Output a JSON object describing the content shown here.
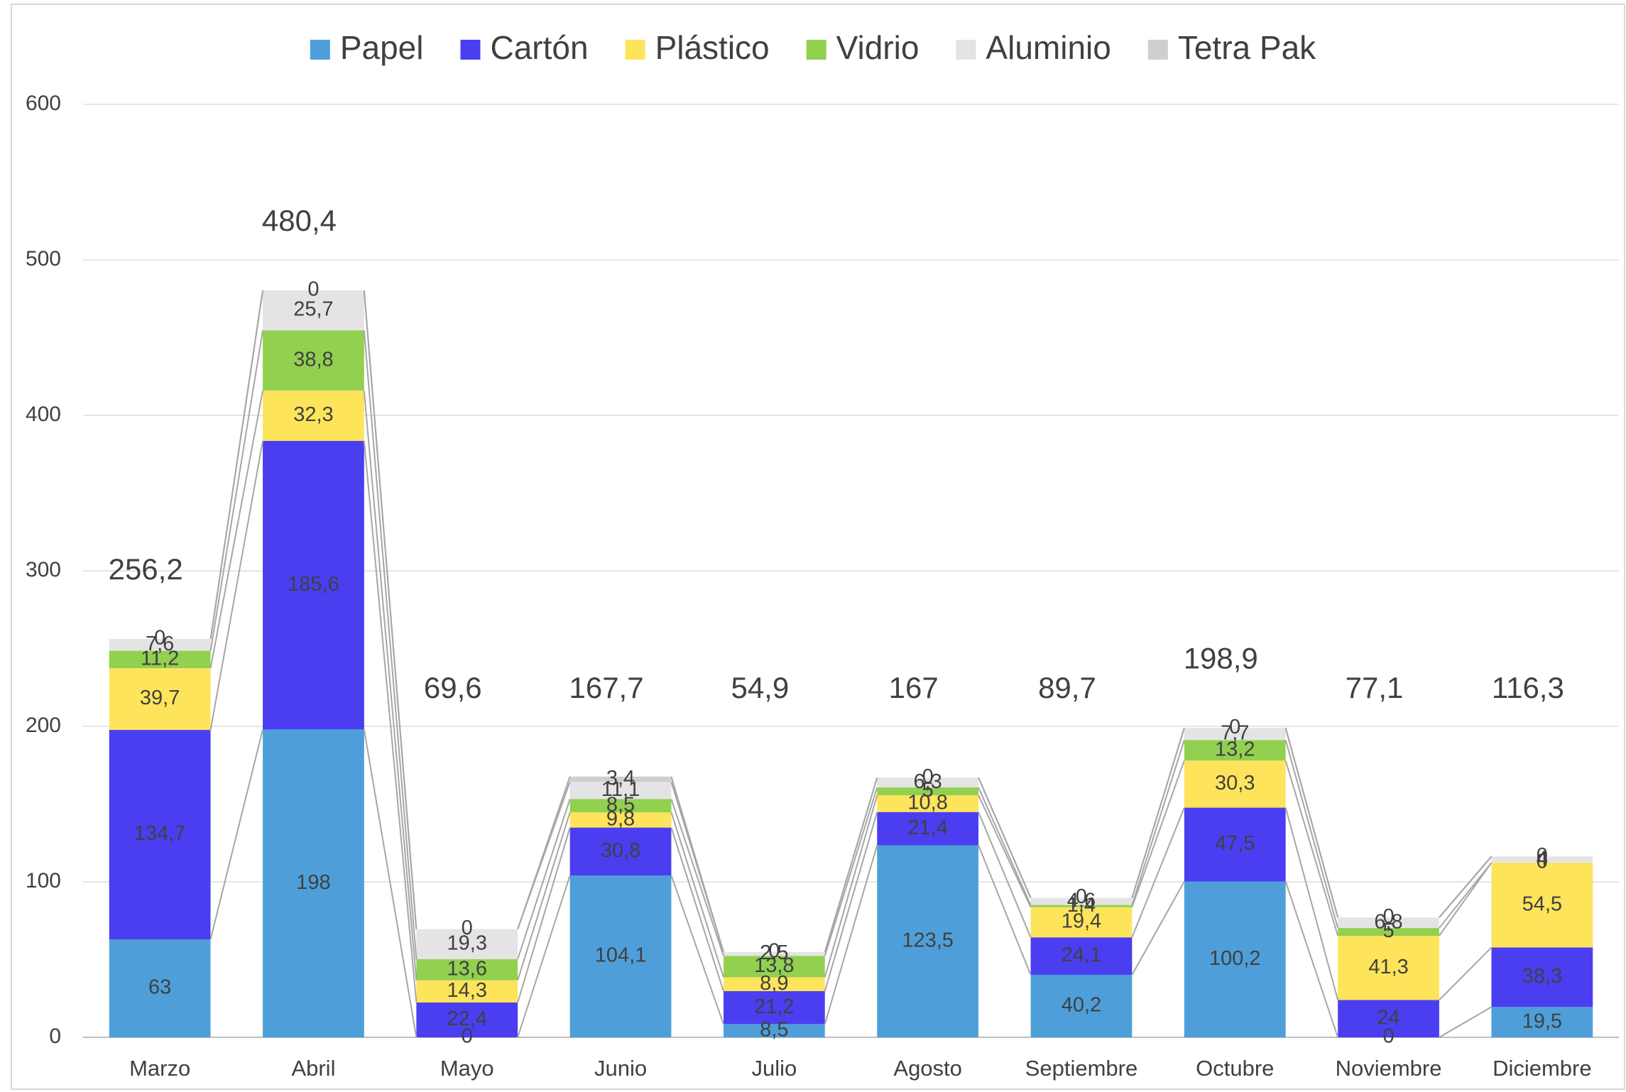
{
  "chart_data": {
    "type": "stacked_bar",
    "categories": [
      "Marzo",
      "Abril",
      "Mayo",
      "Junio",
      "Julio",
      "Agosto",
      "Septiembre",
      "Octubre",
      "Noviembre",
      "Diciembre"
    ],
    "series": [
      {
        "name": "Papel",
        "color": "#4e9fd9",
        "label_color": "#333333",
        "values": [
          63,
          198,
          0,
          104.1,
          8.5,
          123.5,
          40.2,
          100.2,
          0,
          19.5
        ],
        "value_labels": [
          "63",
          "198",
          "0",
          "104,1",
          "8,5",
          "123,5",
          "40,2",
          "100,2",
          "0",
          "19,5"
        ]
      },
      {
        "name": "Cartón",
        "color": "#4a3ef0",
        "label_color": "#ffffff",
        "values": [
          134.7,
          185.6,
          22.4,
          30.8,
          21.2,
          21.4,
          24.1,
          47.5,
          24,
          38.3
        ],
        "value_labels": [
          "134,7",
          "185,6",
          "22,4",
          "30,8",
          "21,2",
          "21,4",
          "24,1",
          "47,5",
          "24",
          "38,3"
        ]
      },
      {
        "name": "Plástico",
        "color": "#fde45b",
        "label_color": "#333333",
        "values": [
          39.7,
          32.3,
          14.3,
          9.8,
          8.9,
          10.8,
          19.4,
          30.3,
          41.3,
          54.5
        ],
        "value_labels": [
          "39,7",
          "32,3",
          "14,3",
          "9,8",
          "8,9",
          "10,8",
          "19,4",
          "30,3",
          "41,3",
          "54,5"
        ]
      },
      {
        "name": "Vidrio",
        "color": "#92d050",
        "label_color": "#333333",
        "values": [
          11.2,
          38.8,
          13.6,
          8.5,
          13.8,
          5,
          1.4,
          13.2,
          5,
          0
        ],
        "value_labels": [
          "11,2",
          "38,8",
          "13,6",
          "8,5",
          "13,8",
          "5",
          "1,4",
          "13,2",
          "5",
          "0"
        ]
      },
      {
        "name": "Aluminio",
        "color": "#e4e4e4",
        "label_color": "#333333",
        "values": [
          7.6,
          25.7,
          19.3,
          11.1,
          2.5,
          6.3,
          4.6,
          7.7,
          6.8,
          4
        ],
        "value_labels": [
          "7,6",
          "25,7",
          "19,3",
          "11,1",
          "2,5",
          "6,3",
          "4,6",
          "7,7",
          "6,8",
          "4"
        ]
      },
      {
        "name": "Tetra Pak",
        "color": "#cfcfcf",
        "label_color": "#333333",
        "values": [
          0,
          0,
          0,
          3.4,
          0,
          0,
          0,
          0,
          0,
          0
        ],
        "value_labels": [
          "0",
          "0",
          "0",
          "3,4",
          "0",
          "0",
          "0",
          "0",
          "0",
          "0"
        ]
      }
    ],
    "totals": [
      256.2,
      480.4,
      69.6,
      167.7,
      54.9,
      167,
      89.7,
      198.9,
      77.1,
      116.3
    ],
    "totals_labels": [
      "256,2",
      "480,4",
      "69,6",
      "167,7",
      "54,9",
      "167",
      "89,7",
      "198,9",
      "77,1",
      "116,3"
    ],
    "ylim": [
      0,
      600
    ],
    "yticks": [
      0,
      100,
      200,
      300,
      400,
      500,
      600
    ],
    "grid": true,
    "legend": "top"
  }
}
